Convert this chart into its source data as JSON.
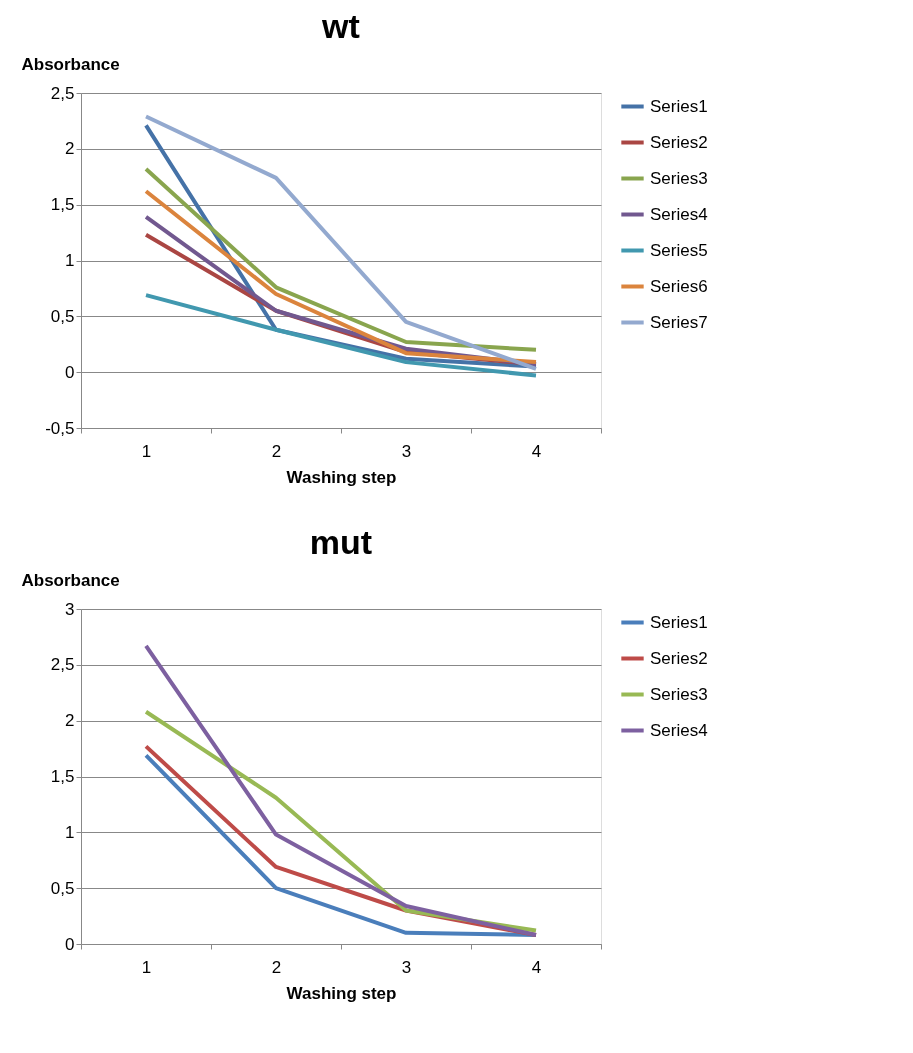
{
  "chart_data": [
    {
      "type": "line",
      "title": "wt",
      "xlabel": "Washing step",
      "ylabel": "Absorbance",
      "categories": [
        "1",
        "2",
        "3",
        "4"
      ],
      "ylim": [
        -0.5,
        2.5
      ],
      "yticks": [
        {
          "value": -0.5,
          "label": "-0,5"
        },
        0,
        {
          "value": 0.5,
          "label": "0,5"
        },
        1,
        {
          "value": 1.5,
          "label": "1,5"
        },
        2,
        {
          "value": 2.5,
          "label": "2,5"
        }
      ],
      "grid": "y",
      "legend": "right",
      "marker": "none",
      "line_style": "solid",
      "series": [
        {
          "name": "Series1",
          "color": "#4572a7",
          "values": [
            2.21,
            0.38,
            0.12,
            0.05
          ]
        },
        {
          "name": "Series2",
          "color": "#aa4643",
          "values": [
            1.23,
            0.55,
            0.18,
            0.07
          ]
        },
        {
          "name": "Series3",
          "color": "#89a54e",
          "values": [
            1.82,
            0.76,
            0.27,
            0.2
          ]
        },
        {
          "name": "Series4",
          "color": "#71588f",
          "values": [
            1.39,
            0.55,
            0.21,
            0.07
          ]
        },
        {
          "name": "Series5",
          "color": "#4198af",
          "values": [
            0.69,
            0.38,
            0.09,
            -0.03
          ]
        },
        {
          "name": "Series6",
          "color": "#db843d",
          "values": [
            1.62,
            0.7,
            0.17,
            0.09
          ]
        },
        {
          "name": "Series7",
          "color": "#93a9cf",
          "values": [
            2.29,
            1.74,
            0.45,
            0.03
          ]
        }
      ]
    },
    {
      "type": "line",
      "title": "mut",
      "xlabel": "Washing step",
      "ylabel": "Absorbance",
      "categories": [
        "1",
        "2",
        "3",
        "4"
      ],
      "ylim": [
        0,
        3
      ],
      "yticks": [
        0,
        {
          "value": 0.5,
          "label": "0,5"
        },
        1,
        {
          "value": 1.5,
          "label": "1,5"
        },
        2,
        {
          "value": 2.5,
          "label": "2,5"
        },
        3
      ],
      "grid": "y",
      "legend": "right",
      "marker": "none",
      "line_style": "solid",
      "series": [
        {
          "name": "Series1",
          "color": "#4a7ebb",
          "values": [
            1.69,
            0.5,
            0.1,
            0.08
          ]
        },
        {
          "name": "Series2",
          "color": "#be4b48",
          "values": [
            1.77,
            0.69,
            0.3,
            0.08
          ]
        },
        {
          "name": "Series3",
          "color": "#98b954",
          "values": [
            2.08,
            1.31,
            0.3,
            0.12
          ]
        },
        {
          "name": "Series4",
          "color": "#7d60a0",
          "values": [
            2.67,
            0.98,
            0.34,
            0.08
          ]
        }
      ]
    }
  ]
}
